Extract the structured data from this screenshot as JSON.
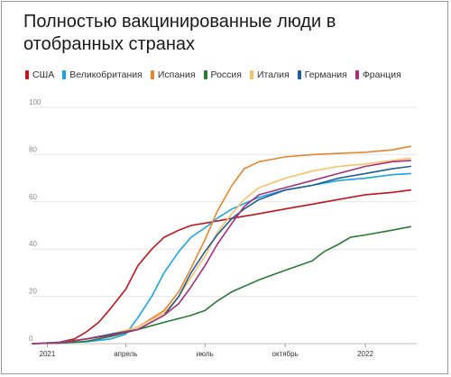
{
  "chart_data": {
    "type": "line",
    "title": "Полностью вакцинированные люди в отобранных странах",
    "xlabel": "",
    "ylabel": "",
    "ylim": [
      0,
      100
    ],
    "yticks": [
      0,
      20,
      40,
      60,
      80,
      100
    ],
    "xlim": [
      "2020-12-15",
      "2022-03-01"
    ],
    "xticks": [
      {
        "date": "2021-01-01",
        "label": "2021"
      },
      {
        "date": "2021-04-01",
        "label": "апрель"
      },
      {
        "date": "2021-07-01",
        "label": "июль"
      },
      {
        "date": "2021-10-01",
        "label": "октябрь"
      },
      {
        "date": "2022-01-01",
        "label": "2022"
      }
    ],
    "grid": true,
    "legend_position": "top",
    "series": [
      {
        "name": "США",
        "color": "#c0151c",
        "points": [
          [
            "2020-12-15",
            0
          ],
          [
            "2021-01-15",
            0.6
          ],
          [
            "2021-02-01",
            2
          ],
          [
            "2021-02-15",
            5
          ],
          [
            "2021-03-01",
            9
          ],
          [
            "2021-03-15",
            15
          ],
          [
            "2021-04-01",
            23
          ],
          [
            "2021-04-15",
            33
          ],
          [
            "2021-05-01",
            40
          ],
          [
            "2021-05-15",
            45
          ],
          [
            "2021-06-01",
            48
          ],
          [
            "2021-06-15",
            50
          ],
          [
            "2021-07-01",
            51
          ],
          [
            "2021-08-01",
            53
          ],
          [
            "2021-09-01",
            55
          ],
          [
            "2021-10-01",
            57
          ],
          [
            "2021-11-01",
            59
          ],
          [
            "2021-12-01",
            61
          ],
          [
            "2022-01-01",
            63
          ],
          [
            "2022-02-01",
            64
          ],
          [
            "2022-02-22",
            65
          ]
        ]
      },
      {
        "name": "Великобритания",
        "color": "#1aa3e8",
        "points": [
          [
            "2020-12-15",
            0
          ],
          [
            "2021-01-15",
            0.4
          ],
          [
            "2021-02-15",
            0.8
          ],
          [
            "2021-03-15",
            2
          ],
          [
            "2021-04-01",
            4
          ],
          [
            "2021-04-15",
            11
          ],
          [
            "2021-05-01",
            20
          ],
          [
            "2021-05-15",
            30
          ],
          [
            "2021-06-01",
            39
          ],
          [
            "2021-06-15",
            45
          ],
          [
            "2021-07-01",
            49
          ],
          [
            "2021-07-15",
            53
          ],
          [
            "2021-08-01",
            57
          ],
          [
            "2021-09-01",
            62
          ],
          [
            "2021-10-01",
            65
          ],
          [
            "2021-11-01",
            67
          ],
          [
            "2021-12-01",
            69
          ],
          [
            "2022-01-01",
            70
          ],
          [
            "2022-02-01",
            71.5
          ],
          [
            "2022-02-22",
            72
          ]
        ]
      },
      {
        "name": "Испания",
        "color": "#e8842a",
        "points": [
          [
            "2020-12-15",
            0
          ],
          [
            "2021-01-15",
            0.5
          ],
          [
            "2021-02-15",
            2
          ],
          [
            "2021-03-15",
            4
          ],
          [
            "2021-04-15",
            7
          ],
          [
            "2021-05-15",
            14
          ],
          [
            "2021-06-01",
            22
          ],
          [
            "2021-06-15",
            32
          ],
          [
            "2021-07-01",
            44
          ],
          [
            "2021-07-15",
            56
          ],
          [
            "2021-08-01",
            67
          ],
          [
            "2021-08-15",
            74
          ],
          [
            "2021-09-01",
            77
          ],
          [
            "2021-10-01",
            79
          ],
          [
            "2021-11-01",
            80
          ],
          [
            "2021-12-01",
            80.5
          ],
          [
            "2022-01-01",
            81
          ],
          [
            "2022-02-01",
            82
          ],
          [
            "2022-02-22",
            83.5
          ]
        ]
      },
      {
        "name": "Россия",
        "color": "#2a7a33",
        "points": [
          [
            "2020-12-15",
            0
          ],
          [
            "2021-01-15",
            0.2
          ],
          [
            "2021-02-15",
            1
          ],
          [
            "2021-03-15",
            3
          ],
          [
            "2021-04-15",
            6
          ],
          [
            "2021-05-15",
            9
          ],
          [
            "2021-06-15",
            12
          ],
          [
            "2021-07-01",
            14
          ],
          [
            "2021-07-15",
            18
          ],
          [
            "2021-08-01",
            22
          ],
          [
            "2021-09-01",
            27
          ],
          [
            "2021-10-01",
            31
          ],
          [
            "2021-11-01",
            35
          ],
          [
            "2021-11-15",
            39
          ],
          [
            "2021-12-01",
            42
          ],
          [
            "2021-12-15",
            45
          ],
          [
            "2022-01-01",
            46
          ],
          [
            "2022-02-01",
            48
          ],
          [
            "2022-02-22",
            49.5
          ]
        ]
      },
      {
        "name": "Италия",
        "color": "#f5c26a",
        "points": [
          [
            "2020-12-15",
            0
          ],
          [
            "2021-01-15",
            0.5
          ],
          [
            "2021-02-15",
            2
          ],
          [
            "2021-03-15",
            4
          ],
          [
            "2021-04-15",
            7
          ],
          [
            "2021-05-15",
            13
          ],
          [
            "2021-06-01",
            20
          ],
          [
            "2021-06-15",
            28
          ],
          [
            "2021-07-01",
            37
          ],
          [
            "2021-07-15",
            47
          ],
          [
            "2021-08-01",
            55
          ],
          [
            "2021-08-15",
            61
          ],
          [
            "2021-09-01",
            66
          ],
          [
            "2021-10-01",
            70
          ],
          [
            "2021-11-01",
            73
          ],
          [
            "2021-12-01",
            75
          ],
          [
            "2022-01-01",
            76
          ],
          [
            "2022-02-01",
            77.5
          ],
          [
            "2022-02-22",
            78.5
          ]
        ]
      },
      {
        "name": "Германия",
        "color": "#1f5f96",
        "points": [
          [
            "2020-12-15",
            0
          ],
          [
            "2021-01-15",
            0.5
          ],
          [
            "2021-02-15",
            2
          ],
          [
            "2021-03-15",
            4
          ],
          [
            "2021-04-15",
            6
          ],
          [
            "2021-05-15",
            12
          ],
          [
            "2021-06-01",
            20
          ],
          [
            "2021-06-15",
            30
          ],
          [
            "2021-07-01",
            39
          ],
          [
            "2021-07-15",
            46
          ],
          [
            "2021-08-01",
            53
          ],
          [
            "2021-08-15",
            57
          ],
          [
            "2021-09-01",
            61
          ],
          [
            "2021-10-01",
            65
          ],
          [
            "2021-11-01",
            67
          ],
          [
            "2021-12-01",
            70
          ],
          [
            "2022-01-01",
            72
          ],
          [
            "2022-02-01",
            74
          ],
          [
            "2022-02-22",
            75
          ]
        ]
      },
      {
        "name": "Франция",
        "color": "#a8307a",
        "points": [
          [
            "2020-12-15",
            0
          ],
          [
            "2021-01-15",
            0.3
          ],
          [
            "2021-02-15",
            2
          ],
          [
            "2021-03-15",
            3.5
          ],
          [
            "2021-04-15",
            6
          ],
          [
            "2021-05-15",
            12
          ],
          [
            "2021-06-01",
            17
          ],
          [
            "2021-06-15",
            24
          ],
          [
            "2021-07-01",
            33
          ],
          [
            "2021-07-15",
            42
          ],
          [
            "2021-08-01",
            51
          ],
          [
            "2021-08-15",
            58
          ],
          [
            "2021-09-01",
            63
          ],
          [
            "2021-10-01",
            66
          ],
          [
            "2021-11-01",
            69
          ],
          [
            "2021-12-01",
            72
          ],
          [
            "2022-01-01",
            75
          ],
          [
            "2022-02-01",
            77
          ],
          [
            "2022-02-22",
            77.5
          ]
        ]
      }
    ]
  }
}
